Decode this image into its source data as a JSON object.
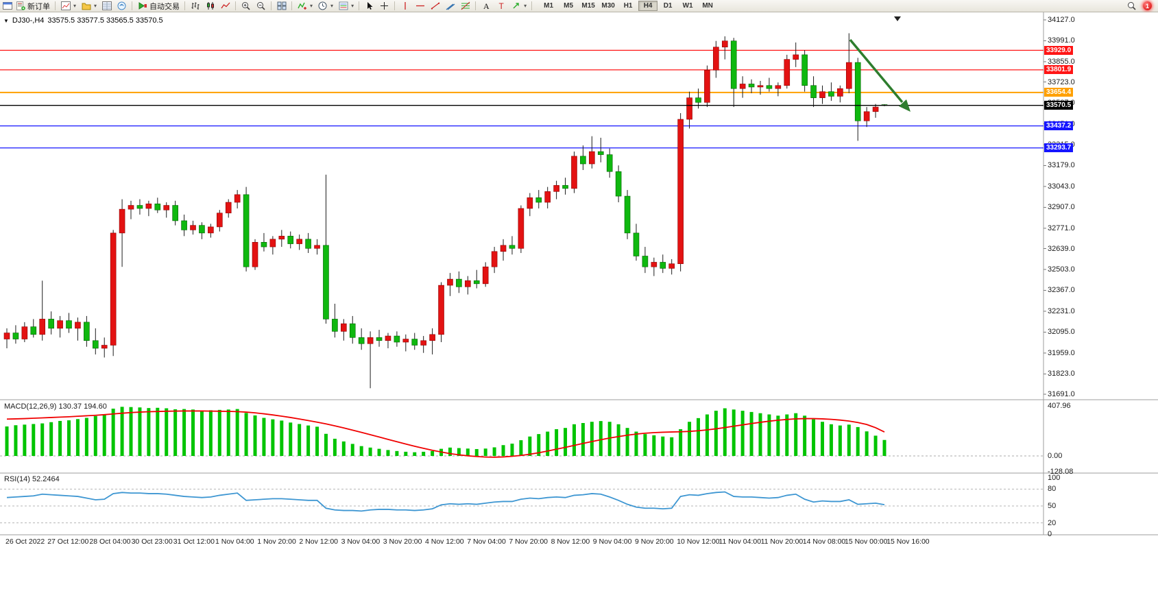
{
  "toolbar": {
    "new_order": "新订单",
    "auto_trading": "自动交易",
    "timeframes": [
      "M1",
      "M5",
      "M15",
      "M30",
      "H1",
      "H4",
      "D1",
      "W1",
      "MN"
    ],
    "active_timeframe": "H4",
    "notification_count": "1",
    "icons": [
      "window-icon",
      "new-order-icon",
      "new-chart-icon",
      "profiles-icon",
      "market-watch-icon",
      "data-window-icon",
      "auto-trading-icon",
      "bars-chart-icon",
      "candlestick-chart-icon",
      "line-chart-icon",
      "zoom-in-icon",
      "zoom-out-icon",
      "tile-windows-icon",
      "indicators-icon",
      "periods-icon",
      "templates-icon",
      "cursor-icon",
      "crosshair-icon",
      "vertical-line-icon",
      "horizontal-line-icon",
      "trendline-icon",
      "channel-icon",
      "fibonacci-icon",
      "text-icon",
      "label-icon",
      "arrow-tool-icon",
      "search-icon",
      "notification-badge"
    ]
  },
  "chart": {
    "title": "DJ30-,H4",
    "ohlc": "33575.5 33577.5 33565.5 33570.5",
    "current_price": {
      "label": "33570.5",
      "value": 33570.5,
      "color": "#000000"
    },
    "price_axis": [
      "34127.0",
      "33991.0",
      "33855.0",
      "33723.0",
      "33587.0",
      "33451.0",
      "33315.0",
      "33179.0",
      "33043.0",
      "32907.0",
      "32771.0",
      "32639.0",
      "32503.0",
      "32367.0",
      "32231.0",
      "32095.0",
      "31959.0",
      "31823.0",
      "31691.0"
    ],
    "date_axis": [
      "26 Oct 2022",
      "27 Oct 12:00",
      "28 Oct 04:00",
      "30 Oct 23:00",
      "31 Oct 12:00",
      "1 Nov 04:00",
      "1 Nov 20:00",
      "2 Nov 12:00",
      "3 Nov 04:00",
      "3 Nov 20:00",
      "4 Nov 12:00",
      "7 Nov 04:00",
      "7 Nov 20:00",
      "8 Nov 12:00",
      "9 Nov 04:00",
      "9 Nov 20:00",
      "10 Nov 12:00",
      "11 Nov 04:00",
      "11 Nov 20:00",
      "14 Nov 08:00",
      "15 Nov 00:00",
      "15 Nov 16:00"
    ],
    "annotation_color": "#2e7d2e"
  },
  "chart_data": [
    {
      "type": "candlestick",
      "symbol": "DJ30",
      "timeframe": "H4",
      "up_color": "#e31212",
      "down_color": "#0fb80f",
      "ylim": [
        31691,
        34127
      ],
      "hlines": [
        {
          "label": "33929.0",
          "value": 33929.0,
          "color": "#ff1515",
          "width": 1.2
        },
        {
          "label": "33801.9",
          "value": 33801.9,
          "color": "#ff1515",
          "width": 1.2
        },
        {
          "label": "33654.4",
          "value": 33654.4,
          "color": "#ffa000",
          "width": 2
        },
        {
          "label": "33437.2",
          "value": 33437.2,
          "color": "#1515ff",
          "width": 1.2
        },
        {
          "label": "33293.7",
          "value": 33293.7,
          "color": "#1515ff",
          "width": 1.2
        }
      ],
      "candles": [
        [
          32050,
          32120,
          31990,
          32090
        ],
        [
          32090,
          32140,
          32020,
          32050
        ],
        [
          32050,
          32160,
          32030,
          32130
        ],
        [
          32130,
          32180,
          32060,
          32080
        ],
        [
          32080,
          32430,
          32040,
          32180
        ],
        [
          32180,
          32230,
          32080,
          32120
        ],
        [
          32120,
          32200,
          32060,
          32170
        ],
        [
          32170,
          32220,
          32090,
          32120
        ],
        [
          32120,
          32190,
          32040,
          32160
        ],
        [
          32160,
          32200,
          32000,
          32040
        ],
        [
          32040,
          32120,
          31950,
          31990
        ],
        [
          31990,
          32060,
          31930,
          32010
        ],
        [
          32010,
          32760,
          31940,
          32740
        ],
        [
          32740,
          32960,
          32520,
          32895
        ],
        [
          32895,
          32950,
          32830,
          32920
        ],
        [
          32920,
          32960,
          32860,
          32900
        ],
        [
          32900,
          32950,
          32850,
          32930
        ],
        [
          32930,
          32970,
          32870,
          32890
        ],
        [
          32890,
          32940,
          32840,
          32920
        ],
        [
          32920,
          32950,
          32790,
          32820
        ],
        [
          32820,
          32860,
          32720,
          32760
        ],
        [
          32760,
          32820,
          32730,
          32790
        ],
        [
          32790,
          32810,
          32700,
          32740
        ],
        [
          32740,
          32800,
          32710,
          32780
        ],
        [
          32780,
          32890,
          32750,
          32870
        ],
        [
          32870,
          32960,
          32840,
          32940
        ],
        [
          32940,
          33020,
          32900,
          32990
        ],
        [
          32990,
          33040,
          32490,
          32520
        ],
        [
          32520,
          32700,
          32500,
          32680
        ],
        [
          32680,
          32740,
          32620,
          32650
        ],
        [
          32650,
          32720,
          32600,
          32700
        ],
        [
          32700,
          32760,
          32650,
          32720
        ],
        [
          32720,
          32750,
          32640,
          32670
        ],
        [
          32670,
          32730,
          32630,
          32700
        ],
        [
          32700,
          32740,
          32610,
          32640
        ],
        [
          32640,
          32700,
          32600,
          32660
        ],
        [
          32660,
          33120,
          32150,
          32180
        ],
        [
          32180,
          32280,
          32060,
          32100
        ],
        [
          32100,
          32180,
          32040,
          32150
        ],
        [
          32150,
          32200,
          32020,
          32060
        ],
        [
          32060,
          32120,
          31980,
          32020
        ],
        [
          32020,
          32100,
          31730,
          32060
        ],
        [
          32060,
          32110,
          32000,
          32040
        ],
        [
          32040,
          32090,
          31990,
          32070
        ],
        [
          32070,
          32100,
          32000,
          32030
        ],
        [
          32030,
          32080,
          31970,
          32050
        ],
        [
          32050,
          32090,
          31980,
          32010
        ],
        [
          32010,
          32070,
          31960,
          32040
        ],
        [
          32040,
          32120,
          31950,
          32080
        ],
        [
          32080,
          32420,
          32030,
          32400
        ],
        [
          32400,
          32480,
          32330,
          32440
        ],
        [
          32440,
          32490,
          32350,
          32390
        ],
        [
          32390,
          32460,
          32340,
          32430
        ],
        [
          32430,
          32500,
          32380,
          32410
        ],
        [
          32410,
          32550,
          32390,
          32520
        ],
        [
          32520,
          32650,
          32480,
          32620
        ],
        [
          32620,
          32700,
          32560,
          32660
        ],
        [
          32660,
          32720,
          32600,
          32640
        ],
        [
          32640,
          32920,
          32610,
          32900
        ],
        [
          32900,
          33000,
          32850,
          32970
        ],
        [
          32970,
          33020,
          32900,
          32940
        ],
        [
          32940,
          33040,
          32900,
          33010
        ],
        [
          33010,
          33080,
          32960,
          33050
        ],
        [
          33050,
          33100,
          32990,
          33030
        ],
        [
          33030,
          33270,
          33000,
          33240
        ],
        [
          33240,
          33310,
          33150,
          33190
        ],
        [
          33190,
          33370,
          33160,
          33270
        ],
        [
          33270,
          33360,
          33200,
          33250
        ],
        [
          33250,
          33290,
          33100,
          33140
        ],
        [
          33140,
          33180,
          32940,
          32980
        ],
        [
          32980,
          33020,
          32700,
          32740
        ],
        [
          32740,
          32800,
          32560,
          32590
        ],
        [
          32590,
          32650,
          32480,
          32520
        ],
        [
          32520,
          32580,
          32460,
          32550
        ],
        [
          32550,
          32600,
          32480,
          32510
        ],
        [
          32510,
          32570,
          32470,
          32540
        ],
        [
          32540,
          33520,
          32490,
          33480
        ],
        [
          33480,
          33660,
          33420,
          33620
        ],
        [
          33620,
          33680,
          33550,
          33590
        ],
        [
          33590,
          33830,
          33560,
          33800
        ],
        [
          33800,
          33990,
          33750,
          33950
        ],
        [
          33950,
          34020,
          33870,
          33990
        ],
        [
          33990,
          34010,
          33560,
          33680
        ],
        [
          33680,
          33760,
          33620,
          33710
        ],
        [
          33710,
          33740,
          33650,
          33690
        ],
        [
          33690,
          33730,
          33640,
          33700
        ],
        [
          33700,
          33750,
          33660,
          33680
        ],
        [
          33680,
          33720,
          33630,
          33700
        ],
        [
          33700,
          33900,
          33680,
          33870
        ],
        [
          33870,
          33980,
          33820,
          33900
        ],
        [
          33900,
          33930,
          33660,
          33700
        ],
        [
          33700,
          33760,
          33560,
          33620
        ],
        [
          33620,
          33700,
          33580,
          33660
        ],
        [
          33660,
          33720,
          33600,
          33630
        ],
        [
          33630,
          33700,
          33590,
          33680
        ],
        [
          33680,
          34040,
          33650,
          33850
        ],
        [
          33850,
          33880,
          33340,
          33470
        ],
        [
          33470,
          33560,
          33430,
          33530
        ],
        [
          33530,
          33580,
          33490,
          33560
        ],
        [
          33575.5,
          33577.5,
          33565.5,
          33570.5
        ]
      ]
    },
    {
      "type": "bar",
      "name": "MACD(12,26,9)",
      "last_values": "130.37 194.60",
      "ylim": [
        -128.08,
        407.96
      ],
      "axis": [
        "407.96",
        "0.00",
        "-128.08"
      ],
      "hist_color": "#00c400",
      "signal_color": "#f00000",
      "histogram": [
        240,
        250,
        255,
        260,
        265,
        275,
        285,
        290,
        300,
        310,
        325,
        340,
        385,
        400,
        398,
        395,
        390,
        392,
        388,
        380,
        382,
        378,
        370,
        372,
        375,
        378,
        382,
        350,
        330,
        310,
        298,
        288,
        272,
        260,
        248,
        238,
        180,
        140,
        118,
        98,
        80,
        68,
        58,
        48,
        40,
        34,
        30,
        34,
        40,
        58,
        68,
        64,
        60,
        56,
        60,
        70,
        88,
        100,
        128,
        158,
        178,
        198,
        218,
        228,
        258,
        268,
        278,
        284,
        278,
        258,
        228,
        198,
        178,
        168,
        158,
        152,
        218,
        278,
        308,
        338,
        368,
        388,
        378,
        368,
        358,
        348,
        338,
        328,
        338,
        348,
        328,
        298,
        278,
        258,
        248,
        255,
        235,
        200,
        165,
        130
      ],
      "signal": [
        300,
        302,
        304,
        307,
        310,
        313,
        316,
        319,
        323,
        327,
        331,
        336,
        342,
        348,
        353,
        357,
        360,
        362,
        364,
        365,
        366,
        366,
        366,
        365,
        364,
        363,
        361,
        357,
        351,
        343,
        334,
        324,
        313,
        301,
        288,
        275,
        261,
        245,
        228,
        210,
        192,
        173,
        154,
        135,
        116,
        97,
        79,
        62,
        46,
        32,
        19,
        9,
        1,
        -5,
        -9,
        -10,
        -8,
        -3,
        4,
        14,
        26,
        40,
        55,
        70,
        86,
        102,
        117,
        132,
        146,
        158,
        169,
        178,
        185,
        190,
        193,
        195,
        197,
        200,
        205,
        212,
        221,
        231,
        242,
        253,
        264,
        274,
        283,
        291,
        297,
        302,
        304,
        304,
        302,
        298,
        292,
        284,
        272,
        256,
        230,
        195
      ]
    },
    {
      "type": "line",
      "name": "RSI(14)",
      "last_value": "52.2464",
      "ylim": [
        0,
        100
      ],
      "axis": [
        "100",
        "80",
        "50",
        "20",
        "0"
      ],
      "levels": [
        80,
        50,
        20
      ],
      "line_color": "#3d96d2",
      "values": [
        65,
        66,
        67,
        68,
        71,
        70,
        69,
        68,
        67,
        64,
        61,
        62,
        72,
        74,
        73,
        73,
        72,
        72,
        71,
        69,
        67,
        66,
        65,
        66,
        69,
        71,
        73,
        60,
        61,
        62,
        63,
        63,
        62,
        61,
        60,
        60,
        46,
        43,
        42,
        42,
        41,
        43,
        44,
        44,
        43,
        43,
        42,
        43,
        45,
        52,
        54,
        53,
        54,
        53,
        55,
        57,
        58,
        58,
        62,
        64,
        63,
        65,
        66,
        65,
        69,
        70,
        72,
        71,
        66,
        60,
        53,
        48,
        46,
        46,
        45,
        46,
        67,
        70,
        69,
        72,
        74,
        75,
        67,
        66,
        66,
        65,
        64,
        65,
        69,
        71,
        62,
        57,
        59,
        58,
        58,
        61,
        53,
        54,
        55,
        52.25
      ]
    }
  ]
}
